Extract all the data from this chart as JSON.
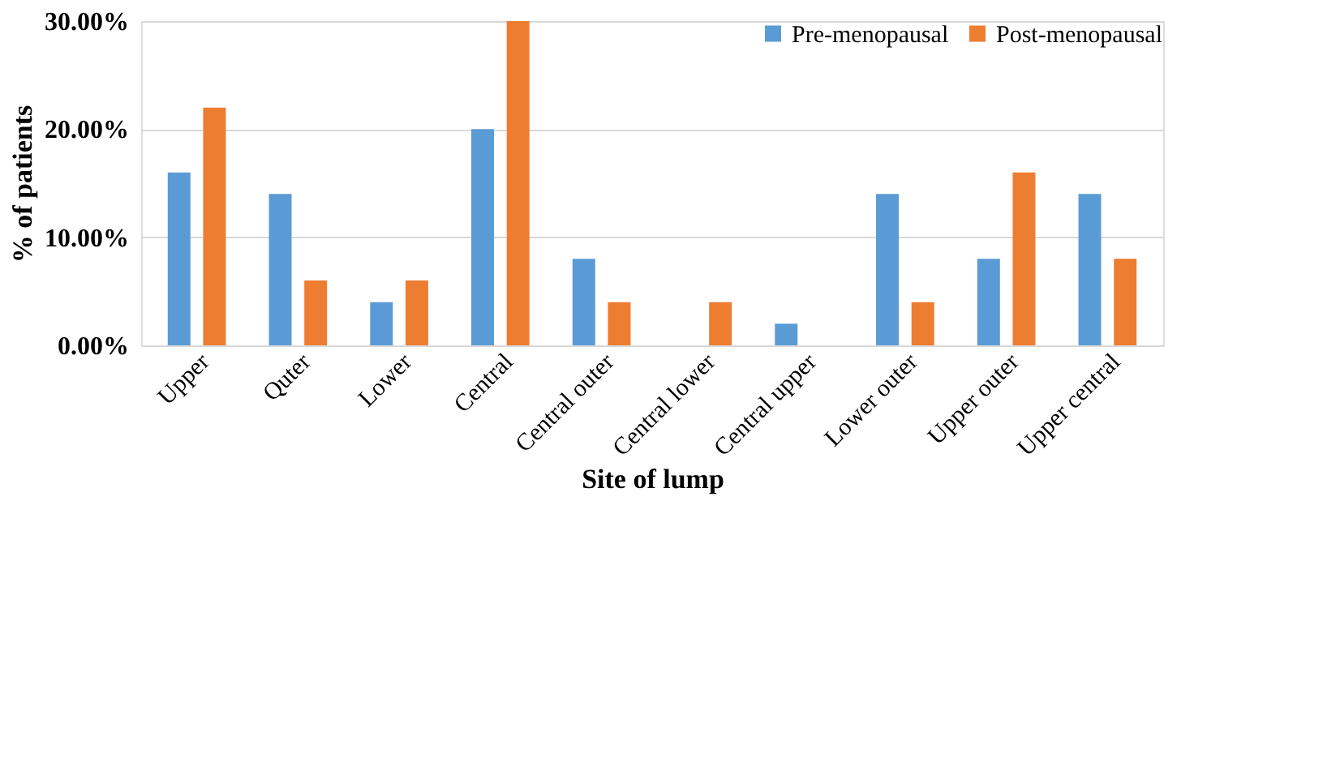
{
  "chart_data": {
    "type": "bar",
    "xlabel": "Site of lump",
    "ylabel": "% of patients",
    "categories": [
      "Upper",
      "Quter",
      "Lower",
      "Central",
      "Central outer",
      "Central lower",
      "Central upper",
      "Lower outer",
      "Upper outer",
      "Upper central"
    ],
    "series": [
      {
        "name": "Pre-menopausal",
        "color": "#5b9bd5",
        "values": [
          16,
          14,
          4,
          20,
          8,
          0,
          2,
          14,
          8,
          14
        ]
      },
      {
        "name": "Post-menopausal",
        "color": "#ed7d31",
        "values": [
          22,
          6,
          6,
          30,
          4,
          4,
          0,
          4,
          16,
          8
        ]
      }
    ],
    "ylim": [
      0,
      30
    ],
    "yticks": [
      {
        "value": 0,
        "label": "0.00%"
      },
      {
        "value": 10,
        "label": "10.00%"
      },
      {
        "value": 20,
        "label": "20.00%"
      },
      {
        "value": 30,
        "label": "30.00%"
      }
    ],
    "grid": "y",
    "legend": "top right"
  }
}
